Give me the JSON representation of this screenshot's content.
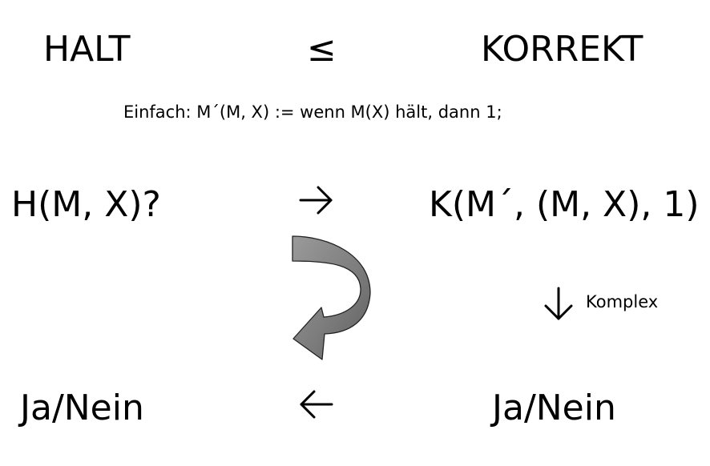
{
  "header": {
    "left": "HALT",
    "relation": "≤",
    "right": "KORREKT"
  },
  "definition": "Einfach:  M´(M, X) := wenn M(X) hält, dann 1;",
  "row1": {
    "left": "H(M, X)?",
    "right": "K(M´, (M, X), 1)"
  },
  "side_label": "Komplex",
  "row2": {
    "left": "Ja/Nein",
    "right": "Ja/Nein"
  }
}
